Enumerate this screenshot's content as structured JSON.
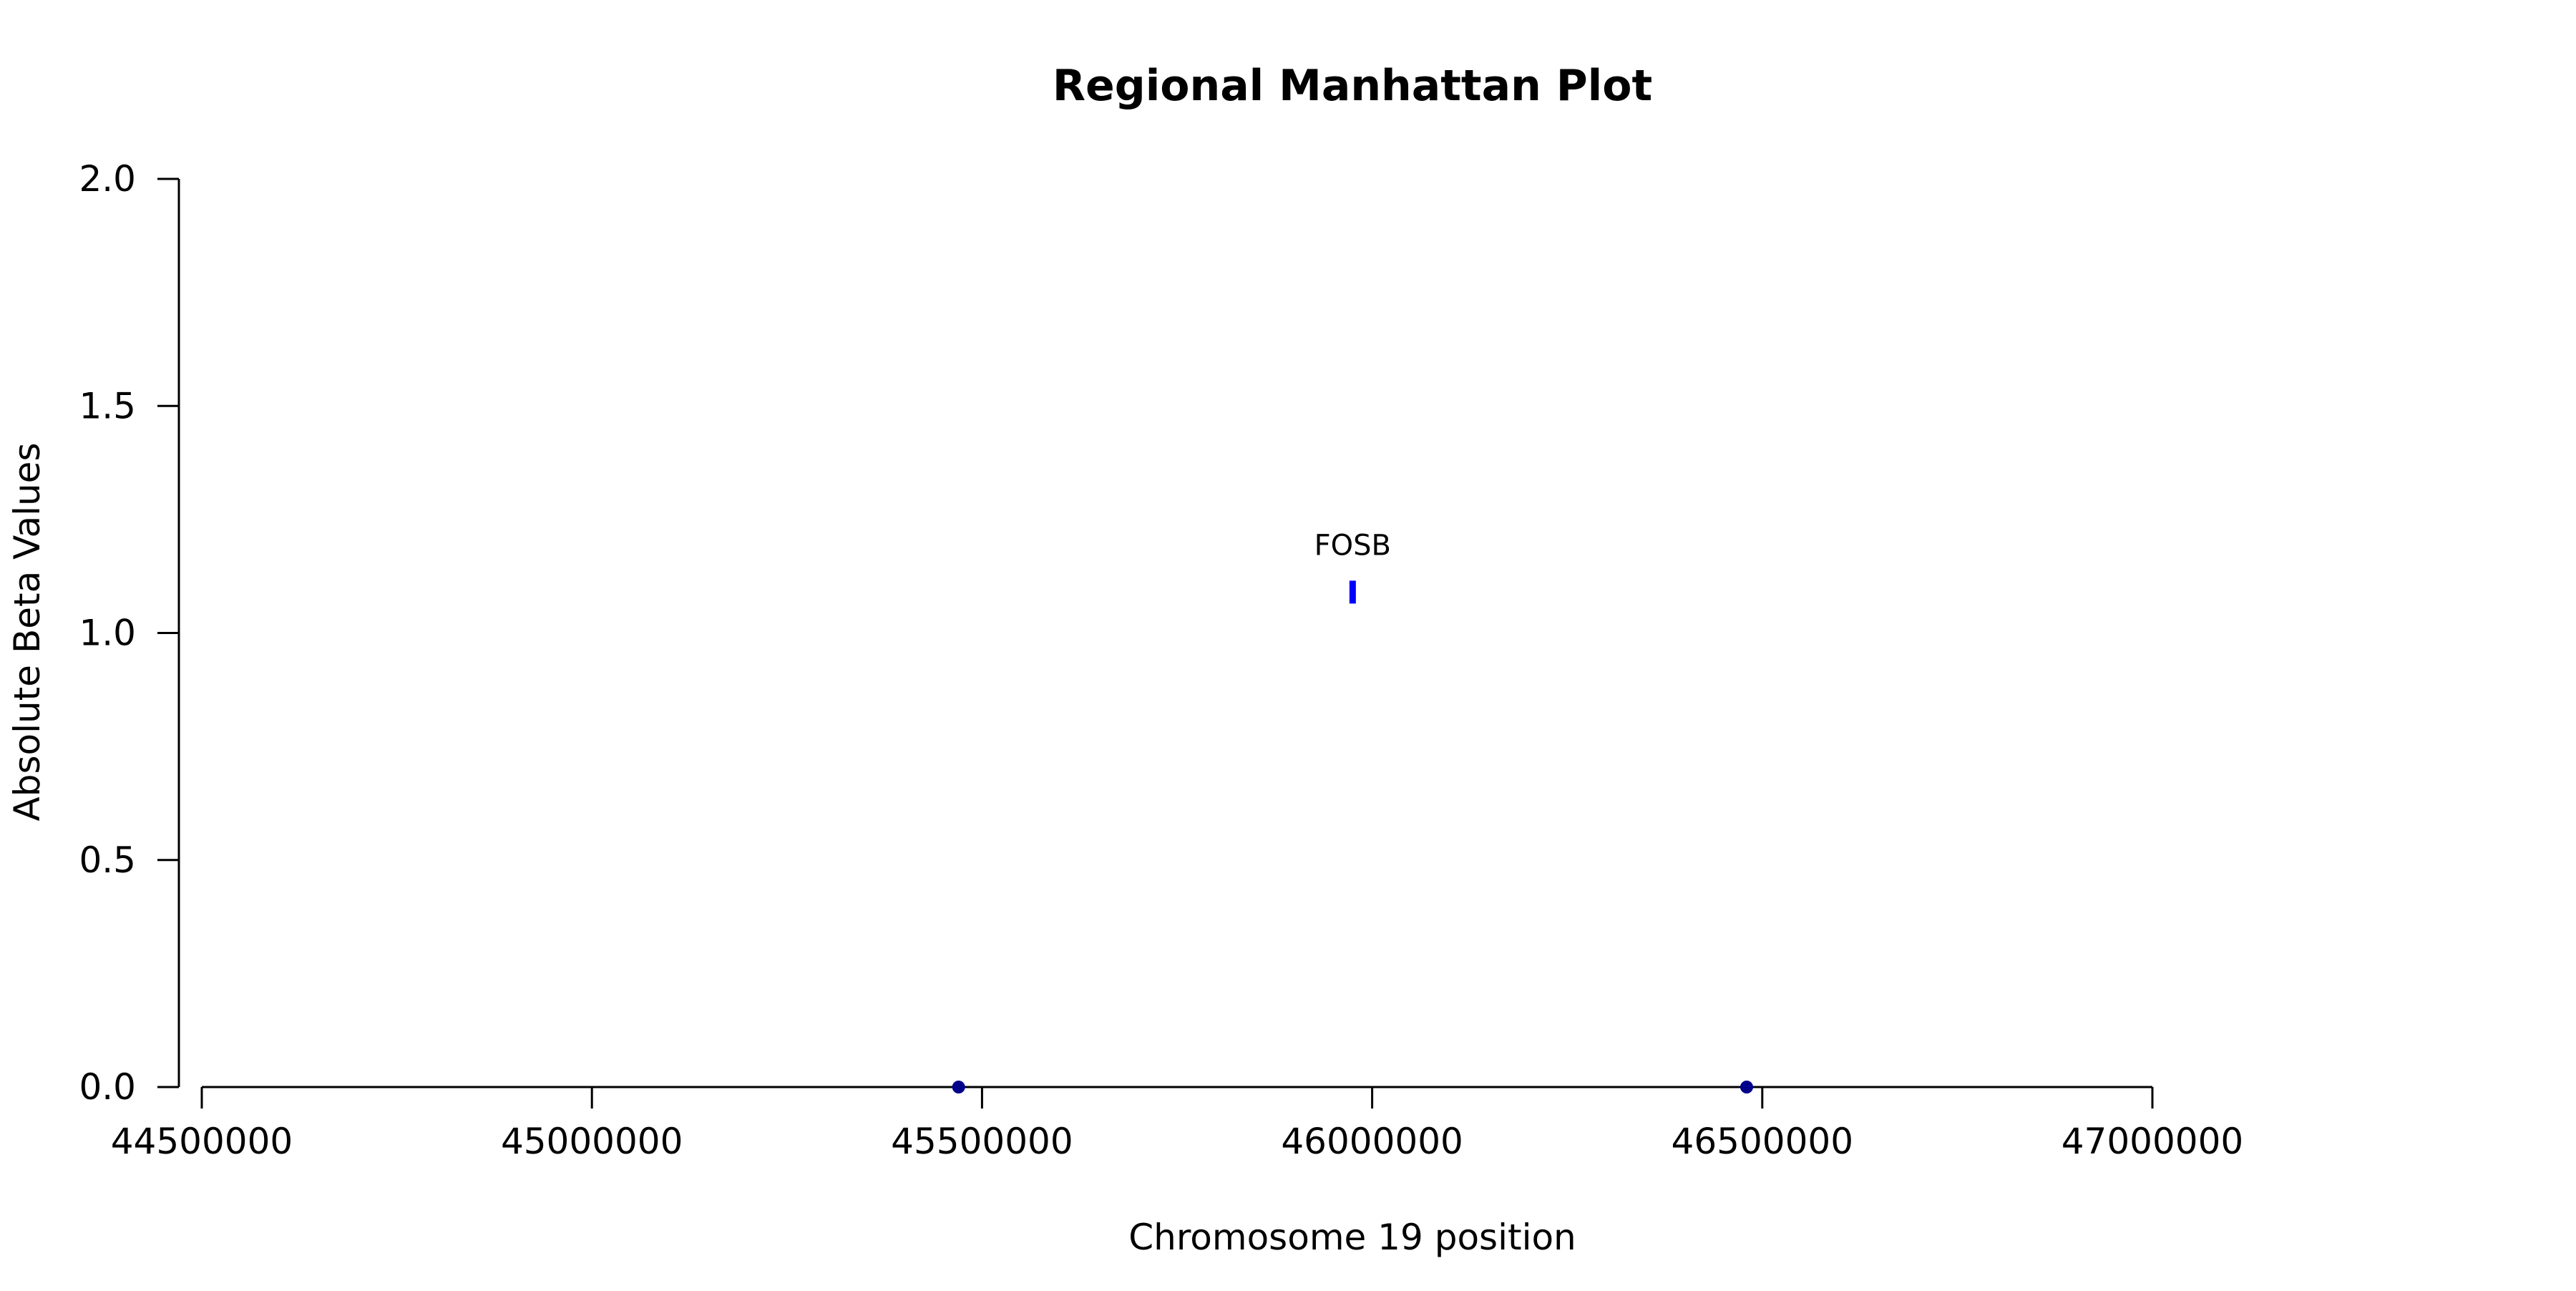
{
  "chart_data": {
    "type": "scatter",
    "title": "Regional Manhattan Plot",
    "xlabel": "Chromosome 19 position",
    "ylabel": "Absolute Beta Values",
    "xlim": [
      44500000,
      47000000
    ],
    "ylim": [
      0,
      2
    ],
    "x_ticks": [
      44500000,
      45000000,
      45500000,
      46000000,
      46500000,
      47000000
    ],
    "x_tick_labels": [
      "44500000",
      "45000000",
      "45500000",
      "46000000",
      "46500000",
      "47000000"
    ],
    "y_ticks": [
      0,
      0.5,
      1,
      1.5,
      2
    ],
    "y_tick_labels": [
      "0.0",
      "0.5",
      "1.0",
      "1.5",
      "2.0"
    ],
    "grid": false,
    "series": [
      {
        "points": [
          {
            "x": 45470000,
            "y": 0.0,
            "color": "#00008b"
          },
          {
            "x": 46480000,
            "y": 0.0,
            "color": "#00008b"
          }
        ]
      },
      {
        "points": [
          {
            "x": 45975000,
            "y": 1.09,
            "color": "#0000ff",
            "label": "FOSB"
          }
        ]
      }
    ]
  }
}
